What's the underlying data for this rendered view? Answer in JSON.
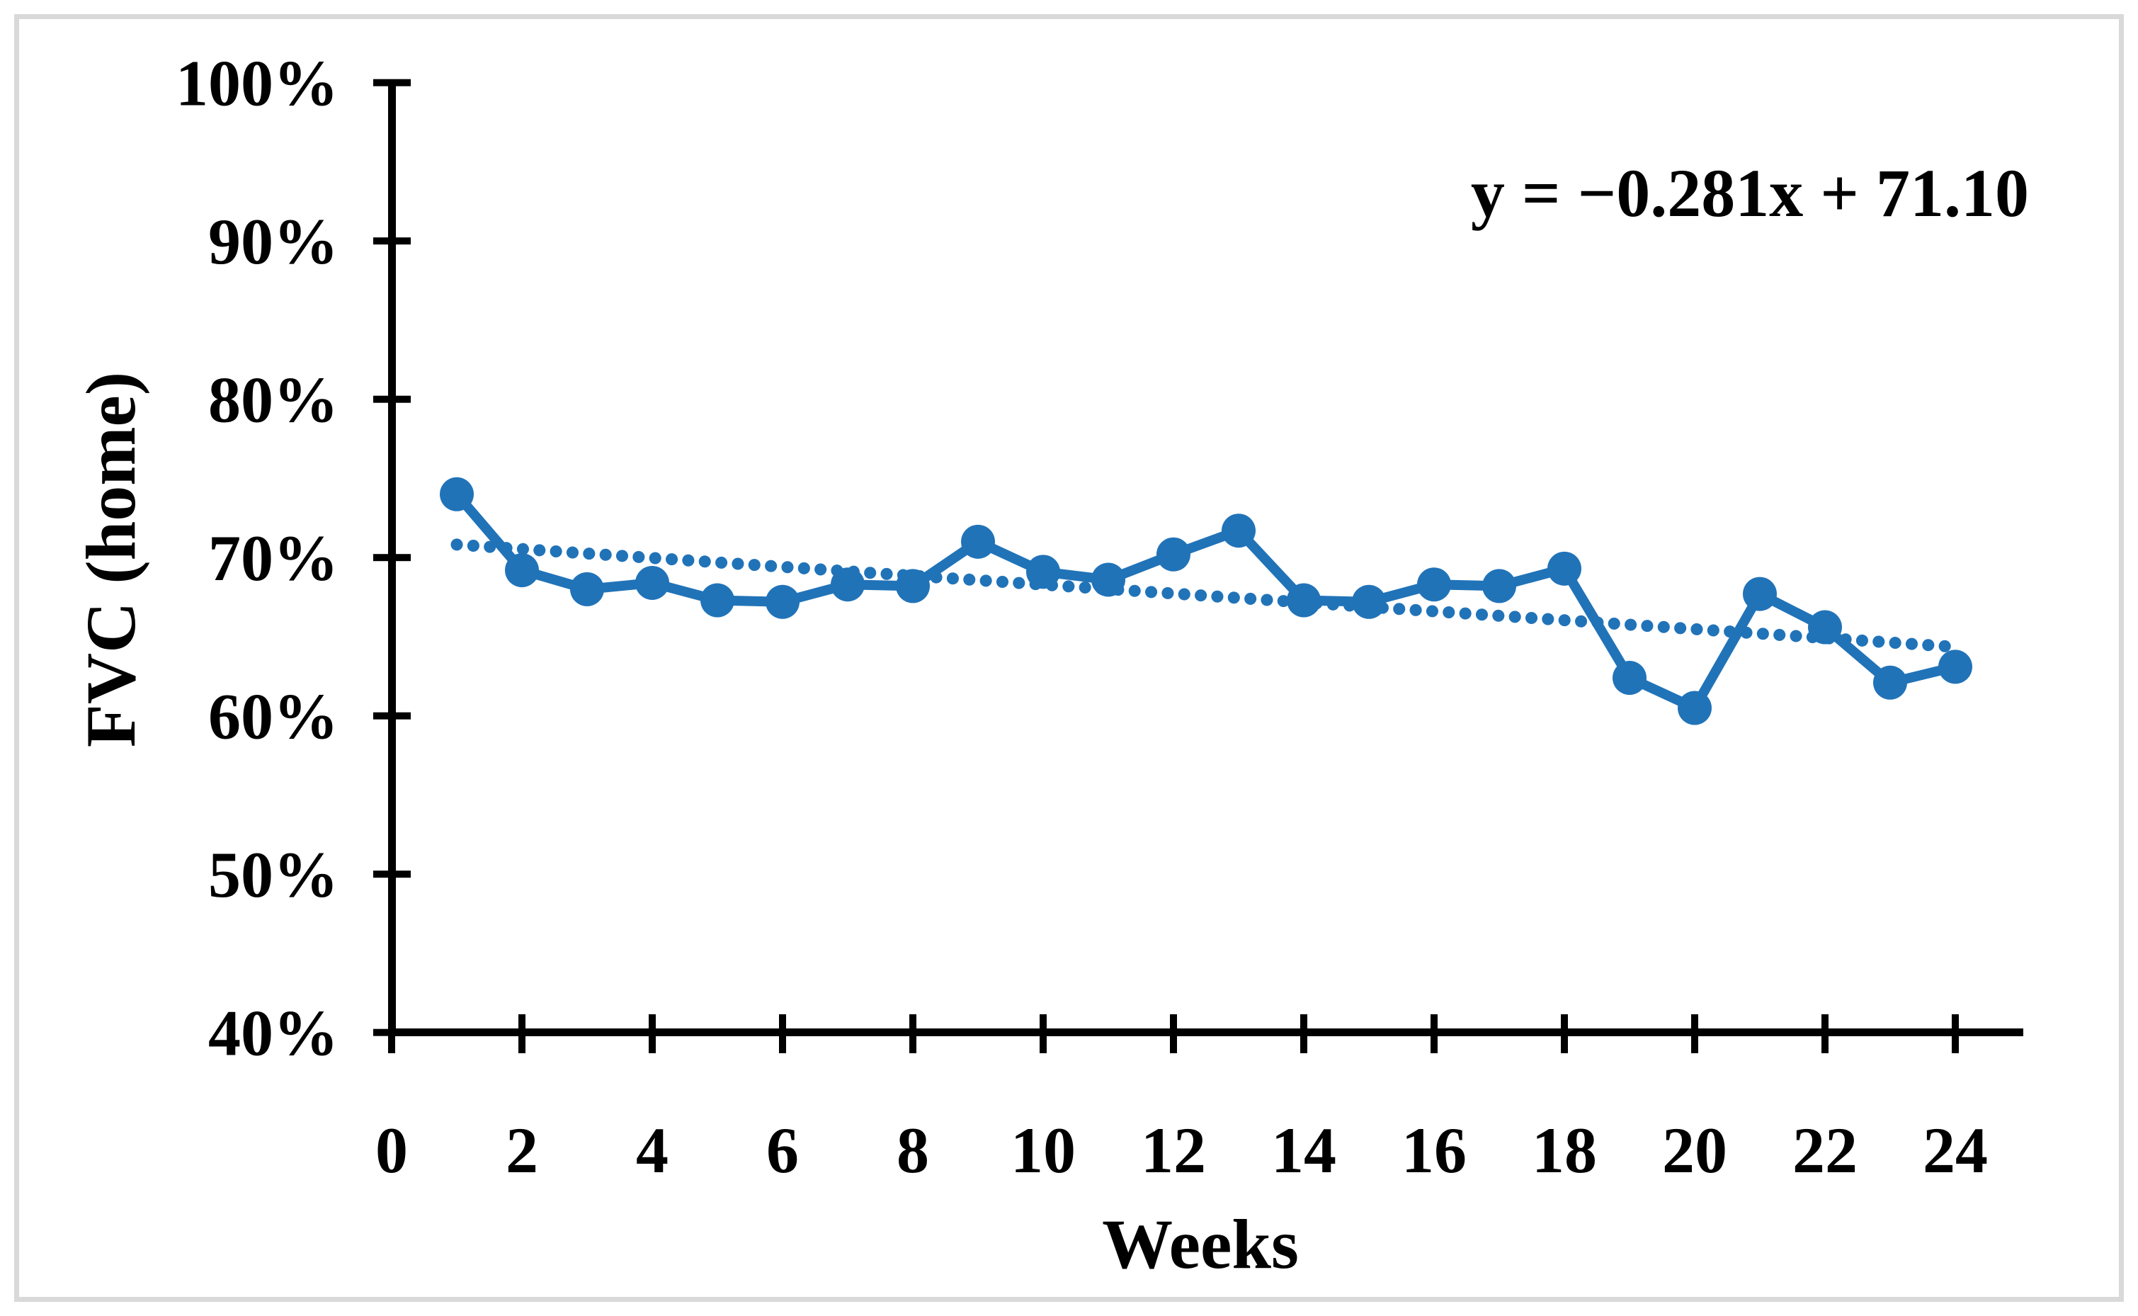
{
  "chart_data": {
    "type": "line",
    "title": "",
    "xlabel": "Weeks",
    "ylabel": "FVC (home)",
    "x": [
      1,
      2,
      3,
      4,
      5,
      6,
      7,
      8,
      9,
      10,
      11,
      12,
      13,
      14,
      15,
      16,
      17,
      18,
      19,
      20,
      21,
      22,
      23,
      24
    ],
    "series": [
      {
        "name": "FVC (home)",
        "values": [
          74.0,
          69.2,
          68.0,
          68.4,
          67.3,
          67.2,
          68.3,
          68.2,
          71.0,
          69.1,
          68.6,
          70.2,
          71.7,
          67.3,
          67.2,
          68.3,
          68.2,
          69.3,
          62.4,
          60.5,
          67.7,
          65.6,
          62.1,
          63.1
        ]
      }
    ],
    "trendline": {
      "label": "y = −0.281x + 71.10",
      "slope": -0.281,
      "intercept": 71.1,
      "x_start": 1,
      "x_end": 24,
      "style": "dotted"
    },
    "xlim": [
      0,
      25
    ],
    "ylim": [
      40,
      100
    ],
    "x_tick_values": [
      0,
      2,
      4,
      6,
      8,
      10,
      12,
      14,
      16,
      18,
      20,
      22,
      24
    ],
    "x_tick_labels": [
      "0",
      "2",
      "4",
      "6",
      "8",
      "10",
      "12",
      "14",
      "16",
      "18",
      "20",
      "22",
      "24"
    ],
    "y_tick_values": [
      40,
      50,
      60,
      70,
      80,
      90,
      100
    ],
    "y_tick_labels": [
      "40%",
      "50%",
      "60%",
      "70%",
      "80%",
      "90%",
      "100%"
    ],
    "grid": "off",
    "legend": "none",
    "colors": {
      "series": "#2173B8",
      "axis": "#000000",
      "frame_border": "#D9D9D9",
      "background": "#FFFFFF"
    }
  }
}
